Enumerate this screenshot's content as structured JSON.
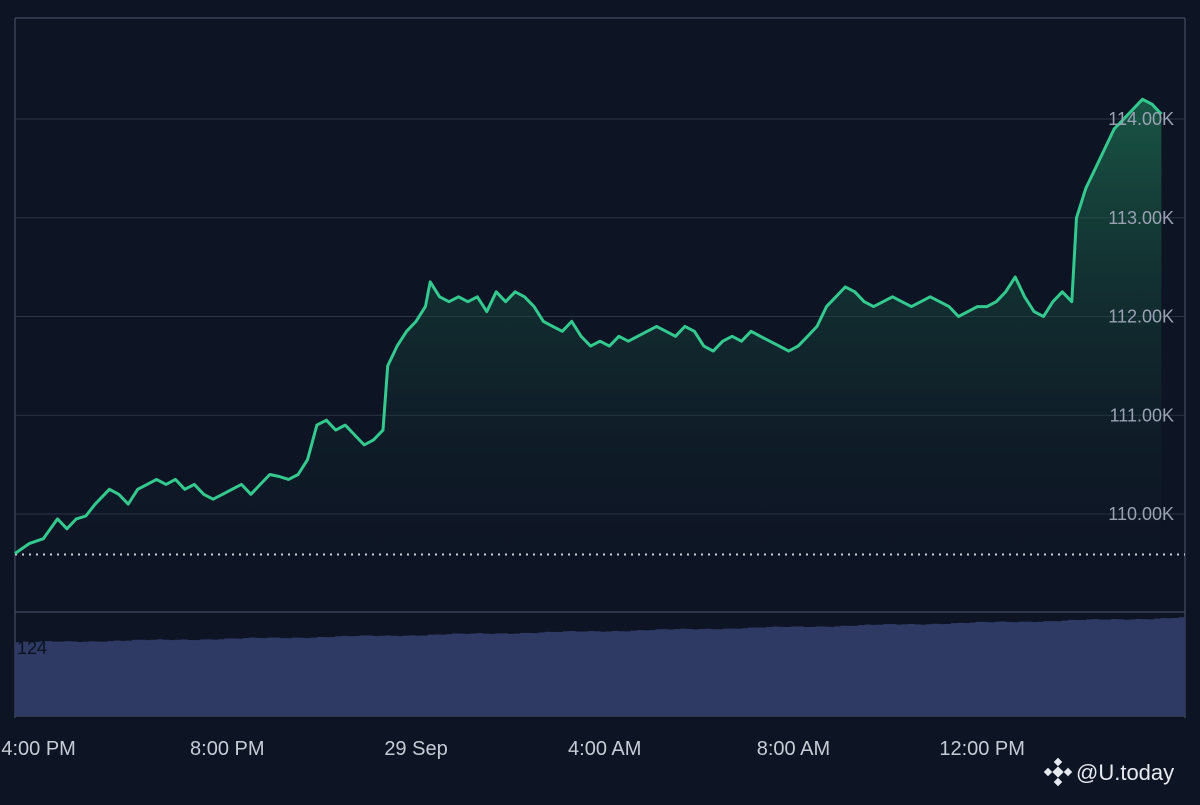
{
  "colors": {
    "background": "#0d1424",
    "grid": "#2b3447",
    "frame": "#3a4356",
    "price_line": "#34c98e",
    "area_top": "#1d6b4f",
    "area_bottom": "#0f1a24",
    "baseline_dotted": "#c9cdd6",
    "volume_bar": "#2e3a63",
    "tick_text": "#98a2b3",
    "brand_text": "#e6e9ef"
  },
  "branding": {
    "icon": "binance-diamond-icon",
    "text": "@U.today"
  },
  "chart_data": {
    "type": "area",
    "x_tick_labels": [
      "4:00 PM",
      "8:00 PM",
      "29 Sep",
      "4:00 AM",
      "8:00 AM",
      "12:00 PM"
    ],
    "y_tick_labels": [
      "114.00K",
      "113.00K",
      "112.00K",
      "111.00K",
      "110.00K"
    ],
    "y_ticks": [
      114000,
      113000,
      112000,
      111000,
      110000
    ],
    "ylim": [
      109000,
      115000
    ],
    "x_hours": [
      0,
      4,
      8,
      12,
      16,
      20
    ],
    "xlim": [
      -0.5,
      24.3
    ],
    "baseline_price": 109590,
    "grid": "horizontal",
    "legend": "none",
    "series": [
      {
        "values": [
          [
            -0.5,
            109600
          ],
          [
            -0.2,
            109700
          ],
          [
            0.1,
            109750
          ],
          [
            0.4,
            109950
          ],
          [
            0.6,
            109850
          ],
          [
            0.8,
            109950
          ],
          [
            1.0,
            109980
          ],
          [
            1.2,
            110100
          ],
          [
            1.5,
            110250
          ],
          [
            1.7,
            110200
          ],
          [
            1.9,
            110100
          ],
          [
            2.1,
            110250
          ],
          [
            2.3,
            110300
          ],
          [
            2.5,
            110350
          ],
          [
            2.7,
            110300
          ],
          [
            2.9,
            110350
          ],
          [
            3.1,
            110250
          ],
          [
            3.3,
            110300
          ],
          [
            3.5,
            110200
          ],
          [
            3.7,
            110150
          ],
          [
            3.9,
            110200
          ],
          [
            4.1,
            110250
          ],
          [
            4.3,
            110300
          ],
          [
            4.5,
            110200
          ],
          [
            4.7,
            110300
          ],
          [
            4.9,
            110400
          ],
          [
            5.1,
            110380
          ],
          [
            5.3,
            110350
          ],
          [
            5.5,
            110400
          ],
          [
            5.7,
            110550
          ],
          [
            5.9,
            110900
          ],
          [
            6.1,
            110950
          ],
          [
            6.3,
            110850
          ],
          [
            6.5,
            110900
          ],
          [
            6.7,
            110800
          ],
          [
            6.9,
            110700
          ],
          [
            7.1,
            110750
          ],
          [
            7.3,
            110850
          ],
          [
            7.4,
            111500
          ],
          [
            7.6,
            111700
          ],
          [
            7.8,
            111850
          ],
          [
            8.0,
            111950
          ],
          [
            8.2,
            112100
          ],
          [
            8.3,
            112350
          ],
          [
            8.5,
            112200
          ],
          [
            8.7,
            112150
          ],
          [
            8.9,
            112200
          ],
          [
            9.1,
            112150
          ],
          [
            9.3,
            112200
          ],
          [
            9.5,
            112050
          ],
          [
            9.7,
            112250
          ],
          [
            9.9,
            112150
          ],
          [
            10.1,
            112250
          ],
          [
            10.3,
            112200
          ],
          [
            10.5,
            112100
          ],
          [
            10.7,
            111950
          ],
          [
            10.9,
            111900
          ],
          [
            11.1,
            111850
          ],
          [
            11.3,
            111950
          ],
          [
            11.5,
            111800
          ],
          [
            11.7,
            111700
          ],
          [
            11.9,
            111750
          ],
          [
            12.1,
            111700
          ],
          [
            12.3,
            111800
          ],
          [
            12.5,
            111750
          ],
          [
            12.7,
            111800
          ],
          [
            12.9,
            111850
          ],
          [
            13.1,
            111900
          ],
          [
            13.3,
            111850
          ],
          [
            13.5,
            111800
          ],
          [
            13.7,
            111900
          ],
          [
            13.9,
            111850
          ],
          [
            14.1,
            111700
          ],
          [
            14.3,
            111650
          ],
          [
            14.5,
            111750
          ],
          [
            14.7,
            111800
          ],
          [
            14.9,
            111750
          ],
          [
            15.1,
            111850
          ],
          [
            15.3,
            111800
          ],
          [
            15.5,
            111750
          ],
          [
            15.7,
            111700
          ],
          [
            15.9,
            111650
          ],
          [
            16.1,
            111700
          ],
          [
            16.3,
            111800
          ],
          [
            16.5,
            111900
          ],
          [
            16.7,
            112100
          ],
          [
            16.9,
            112200
          ],
          [
            17.1,
            112300
          ],
          [
            17.3,
            112250
          ],
          [
            17.5,
            112150
          ],
          [
            17.7,
            112100
          ],
          [
            17.9,
            112150
          ],
          [
            18.1,
            112200
          ],
          [
            18.3,
            112150
          ],
          [
            18.5,
            112100
          ],
          [
            18.7,
            112150
          ],
          [
            18.9,
            112200
          ],
          [
            19.1,
            112150
          ],
          [
            19.3,
            112100
          ],
          [
            19.5,
            112000
          ],
          [
            19.7,
            112050
          ],
          [
            19.9,
            112100
          ],
          [
            20.1,
            112100
          ],
          [
            20.3,
            112150
          ],
          [
            20.5,
            112250
          ],
          [
            20.7,
            112400
          ],
          [
            20.9,
            112200
          ],
          [
            21.1,
            112050
          ],
          [
            21.3,
            112000
          ],
          [
            21.5,
            112150
          ],
          [
            21.7,
            112250
          ],
          [
            21.9,
            112150
          ],
          [
            22.0,
            113000
          ],
          [
            22.2,
            113300
          ],
          [
            22.4,
            113500
          ],
          [
            22.6,
            113700
          ],
          [
            22.8,
            113900
          ],
          [
            23.0,
            114000
          ],
          [
            23.2,
            114100
          ],
          [
            23.4,
            114200
          ],
          [
            23.6,
            114150
          ],
          [
            23.8,
            114050
          ]
        ]
      }
    ],
    "volume": {
      "label": "124",
      "start": 124,
      "end": 165,
      "max": 168,
      "bar_count": 190
    }
  }
}
